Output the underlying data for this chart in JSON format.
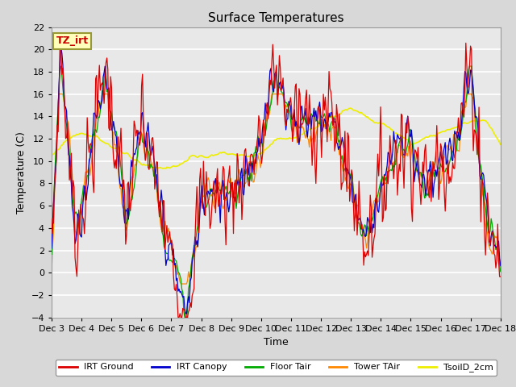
{
  "title": "Surface Temperatures",
  "xlabel": "Time",
  "ylabel": "Temperature (C)",
  "ylim": [
    -4,
    22
  ],
  "yticks": [
    -4,
    -2,
    0,
    2,
    4,
    6,
    8,
    10,
    12,
    14,
    16,
    18,
    20,
    22
  ],
  "series_colors": [
    "#dd0000",
    "#0000cc",
    "#00aa00",
    "#ff8800",
    "#eeee00"
  ],
  "series_labels": [
    "IRT Ground",
    "IRT Canopy",
    "Floor Tair",
    "Tower TAir",
    "TsoilD_2cm"
  ],
  "legend_label": "TZ_irt",
  "background_color": "#d8d8d8",
  "plot_background": "#e8e8e8",
  "grid_color": "#cccccc",
  "n_points": 480,
  "x_start": 3,
  "x_end": 18,
  "xtick_positions": [
    3,
    4,
    5,
    6,
    7,
    8,
    9,
    10,
    11,
    12,
    13,
    14,
    15,
    16,
    17,
    18
  ],
  "xtick_labels": [
    "Dec 3",
    "Dec 4",
    "Dec 5",
    "Dec 6",
    "Dec 7",
    "Dec 8",
    "Dec 9",
    "Dec 10",
    "Dec 11",
    "Dec 12",
    "Dec 13",
    "Dec 14",
    "Dec 15",
    "Dec 16",
    "Dec 17",
    "Dec 18"
  ]
}
